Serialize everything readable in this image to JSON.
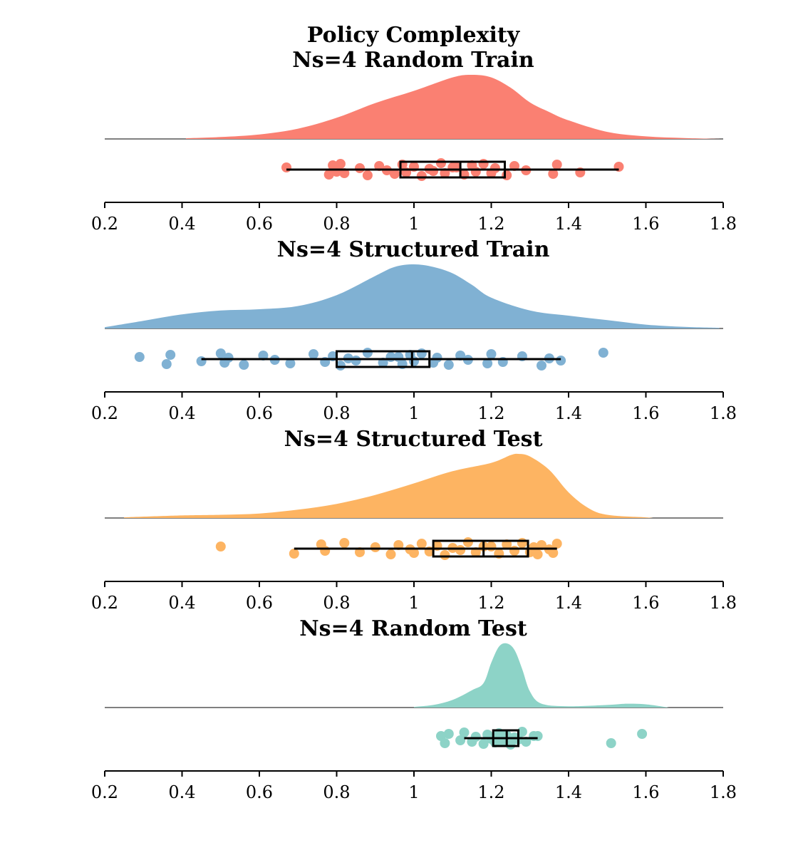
{
  "figure_title": "Policy Complexity",
  "chart_data": [
    {
      "type": "raincloud",
      "title": "Ns=4 Random Train",
      "color": "#fa8072",
      "xlim": [
        0.2,
        1.8
      ],
      "xticks": [
        0.2,
        0.4,
        0.6,
        0.8,
        1,
        1.2,
        1.4,
        1.6,
        1.8
      ],
      "xtick_labels": [
        "0.2",
        "0.4",
        "0.6",
        "0.8",
        "1",
        "1.2",
        "1.4",
        "1.6",
        "1.8"
      ],
      "density": [
        [
          0.41,
          0.01
        ],
        [
          0.5,
          0.03
        ],
        [
          0.6,
          0.07
        ],
        [
          0.7,
          0.16
        ],
        [
          0.8,
          0.33
        ],
        [
          0.9,
          0.56
        ],
        [
          1.0,
          0.75
        ],
        [
          1.1,
          0.96
        ],
        [
          1.15,
          1.0
        ],
        [
          1.2,
          0.96
        ],
        [
          1.25,
          0.8
        ],
        [
          1.3,
          0.57
        ],
        [
          1.35,
          0.42
        ],
        [
          1.4,
          0.29
        ],
        [
          1.5,
          0.11
        ],
        [
          1.6,
          0.04
        ],
        [
          1.7,
          0.015
        ],
        [
          1.8,
          0.0
        ]
      ],
      "box": {
        "whisker_low": 0.67,
        "q1": 0.965,
        "median": 1.12,
        "q3": 1.235,
        "whisker_high": 1.53
      },
      "points": [
        0.67,
        0.78,
        0.79,
        0.8,
        0.81,
        0.82,
        0.86,
        0.88,
        0.91,
        0.93,
        0.95,
        0.97,
        0.98,
        1.0,
        1.02,
        1.04,
        1.05,
        1.07,
        1.08,
        1.1,
        1.11,
        1.13,
        1.15,
        1.16,
        1.18,
        1.2,
        1.21,
        1.24,
        1.26,
        1.29,
        1.36,
        1.37,
        1.43,
        1.53
      ]
    },
    {
      "type": "raincloud",
      "title": "Ns=4 Structured Train",
      "color": "#80b1d3",
      "xlim": [
        0.2,
        1.8
      ],
      "xticks": [
        0.2,
        0.4,
        0.6,
        0.8,
        1,
        1.2,
        1.4,
        1.6,
        1.8
      ],
      "xtick_labels": [
        "0.2",
        "0.4",
        "0.6",
        "0.8",
        "1",
        "1.2",
        "1.4",
        "1.6",
        "1.8"
      ],
      "density": [
        [
          0.2,
          0.02
        ],
        [
          0.3,
          0.12
        ],
        [
          0.4,
          0.22
        ],
        [
          0.5,
          0.28
        ],
        [
          0.6,
          0.3
        ],
        [
          0.7,
          0.35
        ],
        [
          0.8,
          0.52
        ],
        [
          0.9,
          0.82
        ],
        [
          0.95,
          0.96
        ],
        [
          1.0,
          1.0
        ],
        [
          1.05,
          0.96
        ],
        [
          1.1,
          0.86
        ],
        [
          1.15,
          0.68
        ],
        [
          1.2,
          0.48
        ],
        [
          1.3,
          0.28
        ],
        [
          1.4,
          0.2
        ],
        [
          1.5,
          0.13
        ],
        [
          1.6,
          0.06
        ],
        [
          1.7,
          0.025
        ],
        [
          1.79,
          0.01
        ]
      ],
      "box": {
        "whisker_low": 0.45,
        "q1": 0.8,
        "median": 0.995,
        "q3": 1.04,
        "whisker_high": 1.38
      },
      "points": [
        0.29,
        0.36,
        0.37,
        0.45,
        0.5,
        0.51,
        0.52,
        0.56,
        0.61,
        0.64,
        0.68,
        0.74,
        0.77,
        0.79,
        0.81,
        0.83,
        0.85,
        0.88,
        0.92,
        0.94,
        0.96,
        0.97,
        0.99,
        1.0,
        1.02,
        1.05,
        1.06,
        1.09,
        1.12,
        1.14,
        1.19,
        1.2,
        1.23,
        1.28,
        1.33,
        1.35,
        1.38,
        1.49
      ]
    },
    {
      "type": "raincloud",
      "title": "Ns=4 Structured Test",
      "color": "#fdb462",
      "xlim": [
        0.2,
        1.8
      ],
      "xticks": [
        0.2,
        0.4,
        0.6,
        0.8,
        1,
        1.2,
        1.4,
        1.6,
        1.8
      ],
      "xtick_labels": [
        "0.2",
        "0.4",
        "0.6",
        "0.8",
        "1",
        "1.2",
        "1.4",
        "1.6",
        "1.8"
      ],
      "density": [
        [
          0.25,
          0.01
        ],
        [
          0.4,
          0.04
        ],
        [
          0.5,
          0.05
        ],
        [
          0.6,
          0.07
        ],
        [
          0.7,
          0.13
        ],
        [
          0.8,
          0.22
        ],
        [
          0.9,
          0.36
        ],
        [
          1.0,
          0.54
        ],
        [
          1.1,
          0.73
        ],
        [
          1.2,
          0.86
        ],
        [
          1.25,
          0.98
        ],
        [
          1.27,
          1.0
        ],
        [
          1.3,
          0.96
        ],
        [
          1.35,
          0.75
        ],
        [
          1.4,
          0.4
        ],
        [
          1.45,
          0.16
        ],
        [
          1.5,
          0.05
        ],
        [
          1.6,
          0.01
        ],
        [
          1.62,
          0.0
        ]
      ],
      "box": {
        "whisker_low": 0.69,
        "q1": 1.05,
        "median": 1.18,
        "q3": 1.295,
        "whisker_high": 1.37
      },
      "points": [
        0.5,
        0.69,
        0.76,
        0.77,
        0.82,
        0.86,
        0.9,
        0.94,
        0.96,
        0.99,
        1.0,
        1.02,
        1.04,
        1.06,
        1.08,
        1.1,
        1.12,
        1.14,
        1.16,
        1.18,
        1.2,
        1.22,
        1.24,
        1.26,
        1.28,
        1.3,
        1.31,
        1.32,
        1.33,
        1.35,
        1.36,
        1.37
      ]
    },
    {
      "type": "raincloud",
      "title": "Ns=4 Random Test",
      "color": "#8dd3c7",
      "xlim": [
        0.2,
        1.8
      ],
      "xticks": [
        0.2,
        0.4,
        0.6,
        0.8,
        1,
        1.2,
        1.4,
        1.6,
        1.8
      ],
      "xtick_labels": [
        "0.2",
        "0.4",
        "0.6",
        "0.8",
        "1",
        "1.2",
        "1.4",
        "1.6",
        "1.8"
      ],
      "density": [
        [
          1.0,
          0.01
        ],
        [
          1.05,
          0.04
        ],
        [
          1.1,
          0.12
        ],
        [
          1.15,
          0.27
        ],
        [
          1.18,
          0.38
        ],
        [
          1.2,
          0.7
        ],
        [
          1.22,
          0.95
        ],
        [
          1.24,
          1.0
        ],
        [
          1.26,
          0.9
        ],
        [
          1.28,
          0.6
        ],
        [
          1.3,
          0.25
        ],
        [
          1.33,
          0.06
        ],
        [
          1.4,
          0.02
        ],
        [
          1.5,
          0.04
        ],
        [
          1.55,
          0.06
        ],
        [
          1.6,
          0.05
        ],
        [
          1.66,
          0.0
        ]
      ],
      "box": {
        "whisker_low": 1.13,
        "q1": 1.205,
        "median": 1.24,
        "q3": 1.27,
        "whisker_high": 1.32
      },
      "points": [
        1.07,
        1.08,
        1.09,
        1.12,
        1.13,
        1.15,
        1.16,
        1.18,
        1.19,
        1.2,
        1.21,
        1.22,
        1.23,
        1.24,
        1.25,
        1.26,
        1.27,
        1.28,
        1.29,
        1.31,
        1.32,
        1.51,
        1.59
      ]
    }
  ]
}
